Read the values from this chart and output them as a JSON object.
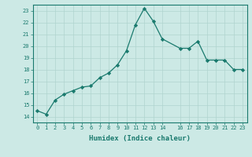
{
  "x": [
    0,
    1,
    2,
    3,
    4,
    5,
    6,
    7,
    8,
    9,
    10,
    11,
    12,
    13,
    14,
    16,
    17,
    18,
    19,
    20,
    21,
    22,
    23
  ],
  "y": [
    14.5,
    14.2,
    15.4,
    15.9,
    16.2,
    16.5,
    16.6,
    17.3,
    17.7,
    18.4,
    19.6,
    21.8,
    23.2,
    22.1,
    20.6,
    19.8,
    19.8,
    20.4,
    18.8,
    18.8,
    18.8,
    18.0,
    18.0
  ],
  "xlim": [
    -0.5,
    23.5
  ],
  "ylim": [
    13.5,
    23.5
  ],
  "yticks": [
    14,
    15,
    16,
    17,
    18,
    19,
    20,
    21,
    22,
    23
  ],
  "xticks": [
    0,
    1,
    2,
    3,
    4,
    5,
    6,
    7,
    8,
    9,
    10,
    11,
    12,
    13,
    14,
    16,
    17,
    18,
    19,
    20,
    21,
    22,
    23
  ],
  "xlabel": "Humidex (Indice chaleur)",
  "line_color": "#1a7a6e",
  "marker": "D",
  "marker_size": 2.2,
  "bg_color": "#cce9e5",
  "grid_color": "#b0d4cf",
  "axis_color": "#1a7a6e",
  "tick_fontsize": 5.0,
  "xlabel_fontsize": 6.5
}
